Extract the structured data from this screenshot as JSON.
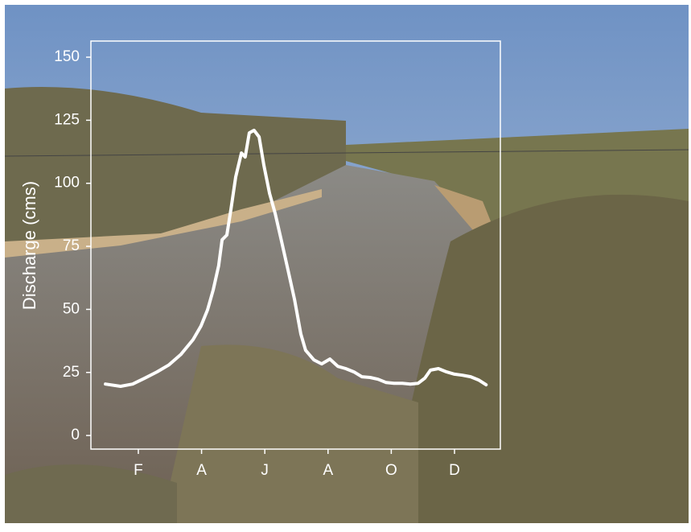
{
  "chart_data": {
    "type": "line",
    "y_label": "Discharge (cms)",
    "x": [
      0.96,
      1.44,
      1.82,
      2.2,
      2.59,
      2.97,
      3.35,
      3.73,
      3.98,
      4.19,
      4.37,
      4.54,
      4.65,
      4.8,
      4.93,
      5.08,
      5.26,
      5.38,
      5.51,
      5.66,
      5.82,
      5.97,
      6.15,
      6.33,
      6.53,
      6.73,
      6.94,
      7.14,
      7.29,
      7.55,
      7.8,
      8.06,
      8.31,
      8.56,
      8.82,
      9.07,
      9.33,
      9.58,
      9.84,
      10.09,
      10.35,
      10.6,
      10.85,
      11.06,
      11.24,
      11.49,
      11.75,
      12.0,
      12.25,
      12.51,
      12.76,
      13.0
    ],
    "values": [
      20.4,
      19.5,
      20.4,
      22.7,
      25.2,
      28,
      32.2,
      38,
      43.4,
      49.8,
      57.8,
      67.3,
      77.6,
      79.5,
      89.7,
      102.5,
      112,
      110.4,
      120,
      121,
      118.4,
      107.2,
      96,
      88,
      77,
      65.8,
      54,
      40.2,
      33.8,
      30,
      28.4,
      30.3,
      27.4,
      26.5,
      25.2,
      23.3,
      23,
      22.3,
      21,
      20.7,
      20.7,
      20.4,
      20.7,
      22.7,
      25.9,
      26.5,
      25.2,
      24.3,
      23.9,
      23.3,
      22,
      20.1
    ],
    "color": "#ffffff",
    "xlim": [
      0.5,
      13.45
    ],
    "xticks": [
      {
        "value": 2,
        "label": "F"
      },
      {
        "value": 4,
        "label": "A"
      },
      {
        "value": 6,
        "label": "J"
      },
      {
        "value": 8,
        "label": "A"
      },
      {
        "value": 10,
        "label": "O"
      },
      {
        "value": 12,
        "label": "D"
      }
    ],
    "ylim": [
      -5.4,
      156.4
    ],
    "yticks": [
      0,
      25,
      50,
      75,
      100,
      125,
      150
    ]
  }
}
